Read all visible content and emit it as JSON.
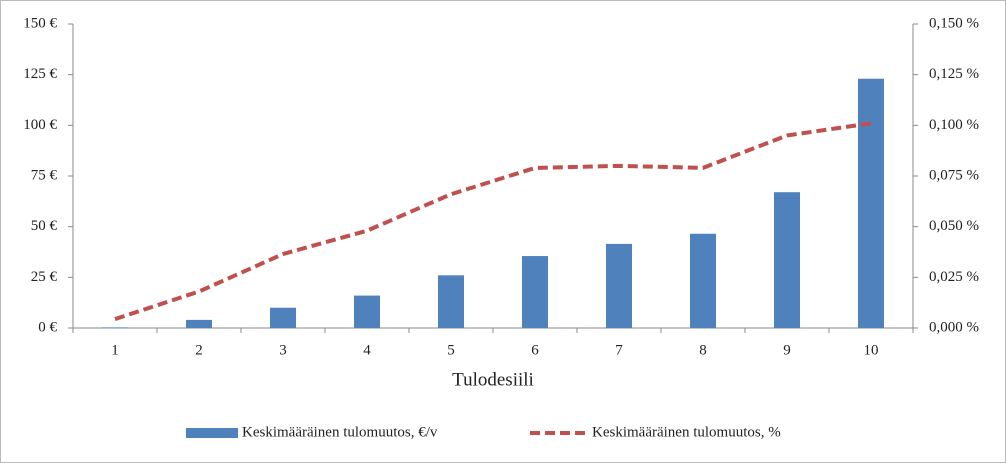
{
  "chart_data": {
    "type": "bar-line",
    "x_label": "Tulodesiili",
    "categories": [
      "1",
      "2",
      "3",
      "4",
      "5",
      "6",
      "7",
      "8",
      "9",
      "10"
    ],
    "series": [
      {
        "name": "Keskimääräinen  tulomuutos, €/v",
        "type": "bar",
        "color": "#4f81bd",
        "values": [
          0.3,
          4,
          10,
          16,
          26,
          35.5,
          41.5,
          46.5,
          67,
          123
        ]
      },
      {
        "name": "Keskimääräinen tulomuutos, %",
        "type": "line",
        "axis": "y2",
        "color": "#c0504d",
        "values": [
          0.0044,
          0.018,
          0.0365,
          0.048,
          0.066,
          0.079,
          0.08,
          0.079,
          0.095,
          0.101
        ]
      }
    ],
    "ylim": [
      0,
      150
    ],
    "yticks": [
      {
        "value": 0,
        "label": "0 €"
      },
      {
        "value": 25,
        "label": "25 €"
      },
      {
        "value": 50,
        "label": "50 €"
      },
      {
        "value": 75,
        "label": "75 €"
      },
      {
        "value": 100,
        "label": "100 €"
      },
      {
        "value": 125,
        "label": "125 €"
      },
      {
        "value": 150,
        "label": "150 €"
      }
    ],
    "y2lim": [
      0,
      0.15
    ],
    "y2ticks": [
      {
        "value": 0,
        "label": "0,000 %"
      },
      {
        "value": 0.025,
        "label": "0,025 %"
      },
      {
        "value": 0.05,
        "label": "0,050 %"
      },
      {
        "value": 0.075,
        "label": "0,075 %"
      },
      {
        "value": 0.1,
        "label": "0,100 %"
      },
      {
        "value": 0.125,
        "label": "0,125 %"
      },
      {
        "value": 0.15,
        "label": "0,150 %"
      }
    ]
  }
}
